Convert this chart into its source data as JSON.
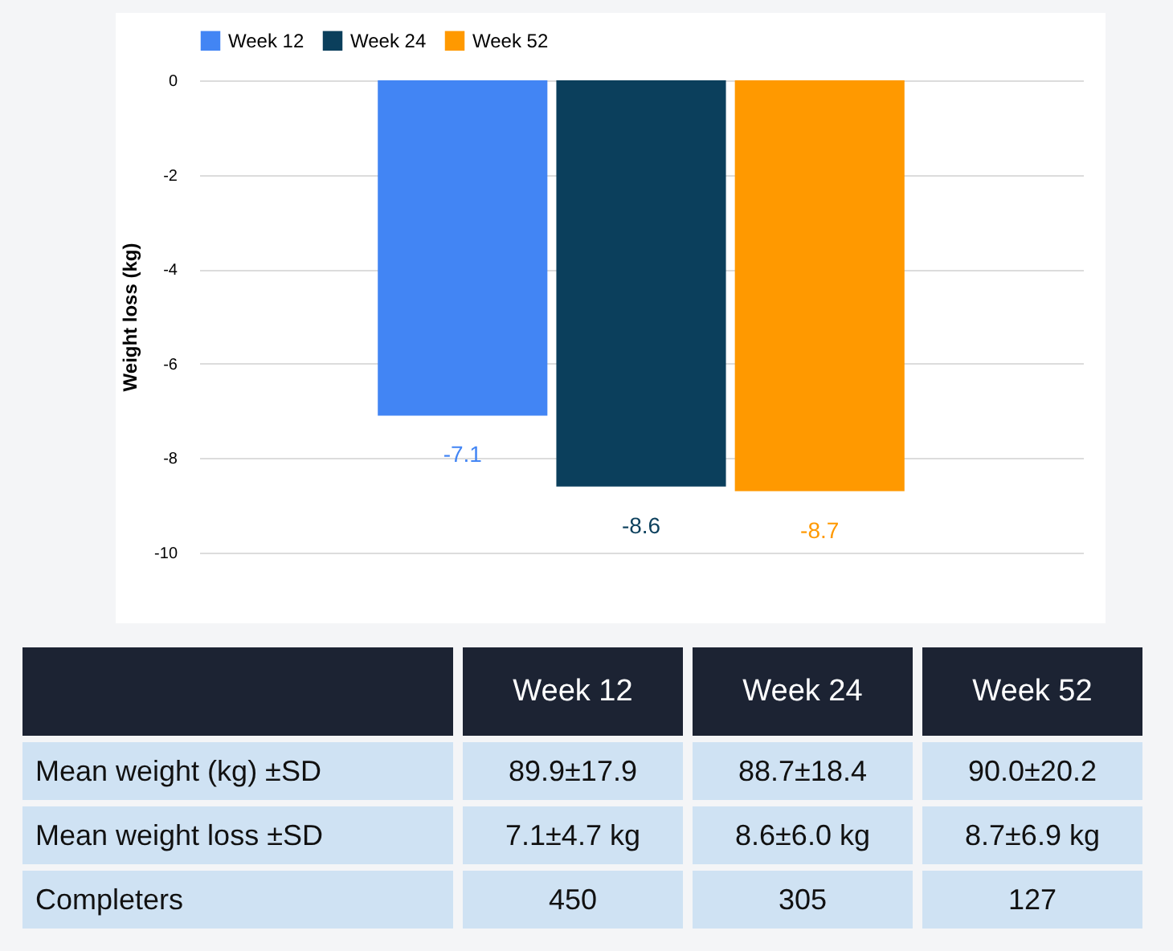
{
  "chart_data": [
    {
      "type": "bar",
      "ylabel": "Weight loss (kg)",
      "categories": [
        null
      ],
      "series": [
        {
          "name": "Week 12",
          "color": "#4285f4",
          "values": [
            -7.1
          ]
        },
        {
          "name": "Week 24",
          "color": "#0b3f5c",
          "values": [
            -8.6
          ]
        },
        {
          "name": "Week 52",
          "color": "#ff9900",
          "values": [
            -8.7
          ]
        }
      ],
      "ylim": [
        -10,
        0
      ],
      "yticks": [
        0,
        -2,
        -4,
        -6,
        -8,
        -10
      ],
      "grid": "y",
      "legend": "top",
      "data_labels": true
    },
    {
      "type": "other",
      "categories": [
        "Week 12",
        "Week 24",
        "Week 52"
      ],
      "y_categories": [
        "Mean weight (kg) ±SD",
        "Mean weight loss ±SD",
        "Completers"
      ],
      "cell_labels": [
        [
          "89.9±17.9",
          "88.7±18.4",
          "90.0±20.2"
        ],
        [
          "7.1±4.7 kg",
          "8.6±6.0 kg",
          "8.7±6.9 kg"
        ],
        [
          "450",
          "305",
          "127"
        ]
      ]
    }
  ]
}
